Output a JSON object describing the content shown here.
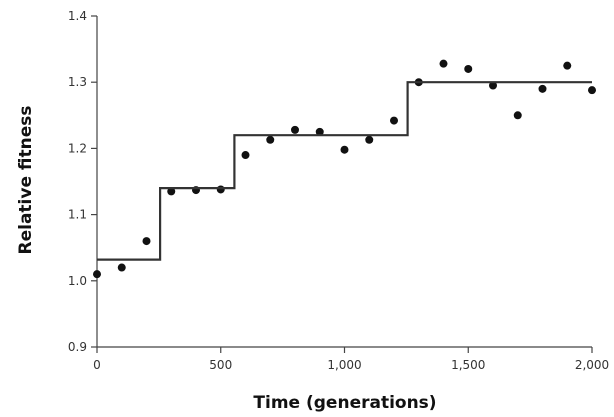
{
  "chart_data": {
    "type": "scatter",
    "title": "",
    "xlabel": "Time (generations)",
    "ylabel": "Relative fitness",
    "xlim": [
      0,
      2000
    ],
    "ylim": [
      0.9,
      1.4
    ],
    "x_ticks": [
      0,
      500,
      1000,
      1500,
      2000
    ],
    "x_tick_labels": [
      "0",
      "500",
      "1,000",
      "1,500",
      "2,000"
    ],
    "y_ticks": [
      0.9,
      1.0,
      1.1,
      1.2,
      1.3,
      1.4
    ],
    "y_tick_labels": [
      "0.9",
      "1.0",
      "1.1",
      "1.2",
      "1.3",
      "1.4"
    ],
    "grid": false,
    "series": [
      {
        "kind": "points",
        "x": [
          0,
          100,
          200,
          300,
          400,
          500,
          600,
          700,
          800,
          900,
          1000,
          1100,
          1200,
          1300,
          1400,
          1500,
          1600,
          1700,
          1800,
          1900,
          2000
        ],
        "y": [
          1.01,
          1.02,
          1.06,
          1.135,
          1.137,
          1.138,
          1.19,
          1.213,
          1.228,
          1.225,
          1.198,
          1.213,
          1.242,
          1.3,
          1.328,
          1.32,
          1.295,
          1.25,
          1.29,
          1.325,
          1.288
        ]
      },
      {
        "kind": "step",
        "x": [
          0,
          255,
          255,
          555,
          555,
          1255,
          1255,
          2000
        ],
        "y": [
          1.032,
          1.032,
          1.14,
          1.14,
          1.22,
          1.22,
          1.3,
          1.3
        ]
      }
    ]
  }
}
